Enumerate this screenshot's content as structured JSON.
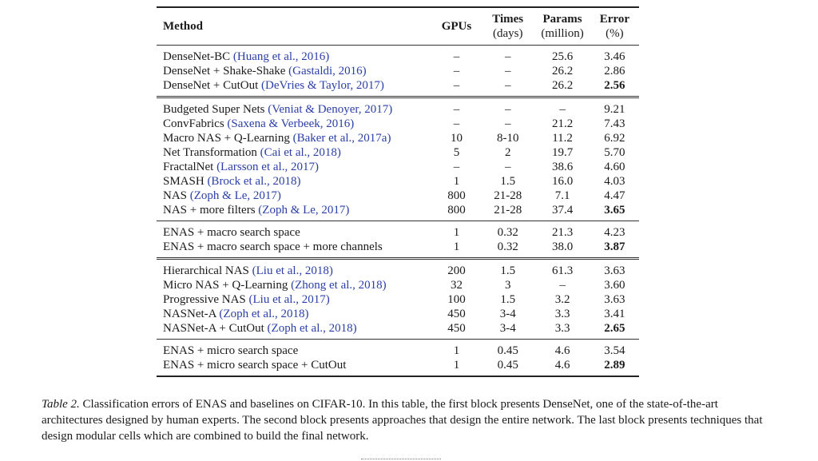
{
  "headers": {
    "method": "Method",
    "gpus": "GPUs",
    "times": "Times",
    "times_unit": "(days)",
    "params": "Params",
    "params_unit": "(million)",
    "error": "Error",
    "error_unit": "(%)"
  },
  "blocks": [
    [
      {
        "name": "DenseNet-BC",
        "cite": "(Huang et al., 2016)",
        "gpus": "–",
        "times": "–",
        "params": "25.6",
        "error": "3.46",
        "bold": false
      },
      {
        "name": "DenseNet + Shake-Shake",
        "cite": "(Gastaldi, 2016)",
        "gpus": "–",
        "times": "–",
        "params": "26.2",
        "error": "2.86",
        "bold": false
      },
      {
        "name": "DenseNet + CutOut",
        "cite": "(DeVries & Taylor, 2017)",
        "gpus": "–",
        "times": "–",
        "params": "26.2",
        "error": "2.56",
        "bold": true
      }
    ],
    [
      {
        "name": "Budgeted Super Nets",
        "cite": "(Veniat & Denoyer, 2017)",
        "gpus": "–",
        "times": "–",
        "params": "–",
        "error": "9.21",
        "bold": false
      },
      {
        "name": "ConvFabrics",
        "cite": "(Saxena & Verbeek, 2016)",
        "gpus": "–",
        "times": "–",
        "params": "21.2",
        "error": "7.43",
        "bold": false
      },
      {
        "name": "Macro NAS + Q-Learning",
        "cite": "(Baker et al., 2017a)",
        "gpus": "10",
        "times": "8-10",
        "params": "11.2",
        "error": "6.92",
        "bold": false
      },
      {
        "name": "Net Transformation",
        "cite": "(Cai et al., 2018)",
        "gpus": "5",
        "times": "2",
        "params": "19.7",
        "error": "5.70",
        "bold": false
      },
      {
        "name": "FractalNet",
        "cite": "(Larsson et al., 2017)",
        "gpus": "–",
        "times": "–",
        "params": "38.6",
        "error": "4.60",
        "bold": false
      },
      {
        "name": "SMASH",
        "cite": "(Brock et al., 2018)",
        "gpus": "1",
        "times": "1.5",
        "params": "16.0",
        "error": "4.03",
        "bold": false
      },
      {
        "name": "NAS",
        "cite": "(Zoph & Le, 2017)",
        "gpus": "800",
        "times": "21-28",
        "params": "7.1",
        "error": "4.47",
        "bold": false
      },
      {
        "name": "NAS + more filters",
        "cite": "(Zoph & Le, 2017)",
        "gpus": "800",
        "times": "21-28",
        "params": "37.4",
        "error": "3.65",
        "bold": true
      }
    ],
    [
      {
        "name": "ENAS + macro search space",
        "cite": "",
        "gpus": "1",
        "times": "0.32",
        "params": "21.3",
        "error": "4.23",
        "bold": false
      },
      {
        "name": "ENAS + macro search space + more channels",
        "cite": "",
        "gpus": "1",
        "times": "0.32",
        "params": "38.0",
        "error": "3.87",
        "bold": true
      }
    ],
    [
      {
        "name": "Hierarchical NAS",
        "cite": "(Liu et al., 2018)",
        "gpus": "200",
        "times": "1.5",
        "params": "61.3",
        "error": "3.63",
        "bold": false
      },
      {
        "name": "Micro NAS + Q-Learning",
        "cite": "(Zhong et al., 2018)",
        "gpus": "32",
        "times": "3",
        "params": "–",
        "error": "3.60",
        "bold": false
      },
      {
        "name": "Progressive NAS",
        "cite": "(Liu et al., 2017)",
        "gpus": "100",
        "times": "1.5",
        "params": "3.2",
        "error": "3.63",
        "bold": false
      },
      {
        "name": "NASNet-A",
        "cite": "(Zoph et al., 2018)",
        "gpus": "450",
        "times": "3-4",
        "params": "3.3",
        "error": "3.41",
        "bold": false
      },
      {
        "name": "NASNet-A + CutOut",
        "cite": "(Zoph et al., 2018)",
        "gpus": "450",
        "times": "3-4",
        "params": "3.3",
        "error": "2.65",
        "bold": true
      }
    ],
    [
      {
        "name": "ENAS + micro search space",
        "cite": "",
        "gpus": "1",
        "times": "0.45",
        "params": "4.6",
        "error": "3.54",
        "bold": false
      },
      {
        "name": "ENAS + micro search space + CutOut",
        "cite": "",
        "gpus": "1",
        "times": "0.45",
        "params": "4.6",
        "error": "2.89",
        "bold": true
      }
    ]
  ],
  "caption": {
    "label": "Table 2.",
    "text": "Classification errors of ENAS and baselines on CIFAR-10. In this table, the first block presents DenseNet, one of the state-of-the-art architectures designed by human experts. The second block presents approaches that design the entire network. The last block presents techniques that design modular cells which are combined to build the final network."
  },
  "colors": {
    "citation": "#2a3ea8",
    "text": "#1a1a1a"
  }
}
